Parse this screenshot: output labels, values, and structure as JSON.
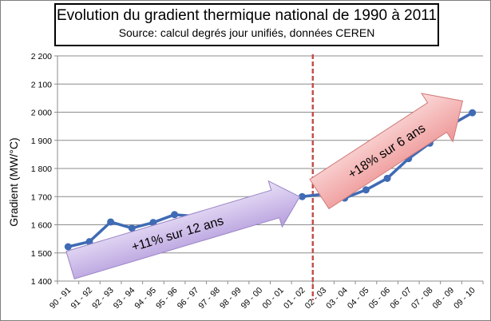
{
  "chart_data": {
    "type": "line",
    "title": "Evolution du gradient thermique national de 1990 à 2011",
    "subtitle": "Source: calcul degrés jour unifiés, données CEREN",
    "xlabel": "",
    "ylabel": "Gradient (MW/°C)",
    "ylim": [
      1400,
      2200
    ],
    "yticks": [
      1400,
      1500,
      1600,
      1700,
      1800,
      1900,
      2000,
      2100,
      2200
    ],
    "ytick_labels": [
      "1 400",
      "1 500",
      "1 600",
      "1 700",
      "1 800",
      "1 900",
      "2 000",
      "2 100",
      "2 200"
    ],
    "categories": [
      "90 - 91",
      "91 - 92",
      "92 - 93",
      "93 - 94",
      "94 - 95",
      "95 - 96",
      "96 - 97",
      "97 - 98",
      "98 - 99",
      "99 - 00",
      "00 - 01",
      "01 - 02",
      "02 - 03",
      "03 - 04",
      "04 - 05",
      "05 - 06",
      "06 - 07",
      "07 - 08",
      "08 - 09",
      "09 - 10"
    ],
    "values": [
      1522,
      1540,
      1610,
      1588,
      1608,
      1636,
      1630,
      1618,
      1674,
      1651,
      1692,
      1700,
      1709,
      1695,
      1724,
      1765,
      1835,
      1890,
      1955,
      1998
    ],
    "grid": true,
    "line_color": "#3f6bb5",
    "divider_after_category": "01 - 02",
    "divider_color": "#c0504d",
    "annotations": [
      {
        "text": "+11% sur 12 ans",
        "color": "#c9b6e8"
      },
      {
        "text": "+18% sur 6 ans",
        "color": "#f3aeae"
      }
    ]
  }
}
